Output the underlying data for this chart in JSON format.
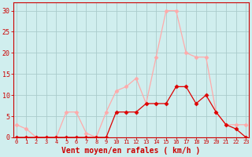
{
  "x": [
    0,
    1,
    2,
    3,
    4,
    5,
    6,
    7,
    8,
    9,
    10,
    11,
    12,
    13,
    14,
    15,
    16,
    17,
    18,
    19,
    20,
    21,
    22,
    23
  ],
  "wind_avg": [
    0,
    0,
    0,
    0,
    0,
    0,
    0,
    0,
    0,
    0,
    6,
    6,
    6,
    8,
    8,
    8,
    12,
    12,
    8,
    10,
    6,
    3,
    2,
    0
  ],
  "wind_gust": [
    3,
    2,
    0,
    0,
    0,
    6,
    6,
    1,
    0,
    6,
    11,
    12,
    14,
    8,
    19,
    30,
    30,
    20,
    19,
    19,
    6,
    3,
    3,
    3
  ],
  "avg_color": "#dd0000",
  "gust_color": "#ffaaaa",
  "bg_color": "#d0eeee",
  "grid_color": "#aacccc",
  "xlabel": "Vent moyen/en rafales ( km/h )",
  "xlabel_color": "#cc0000",
  "ylabel_ticks": [
    0,
    5,
    10,
    15,
    20,
    25,
    30
  ],
  "ylim": [
    0,
    32
  ],
  "xlim": [
    -0.3,
    23.3
  ],
  "tick_color": "#cc0000",
  "spine_color": "#cc0000",
  "title_fontsize": 6,
  "xlabel_fontsize": 7,
  "ytick_fontsize": 6,
  "xtick_fontsize": 5
}
